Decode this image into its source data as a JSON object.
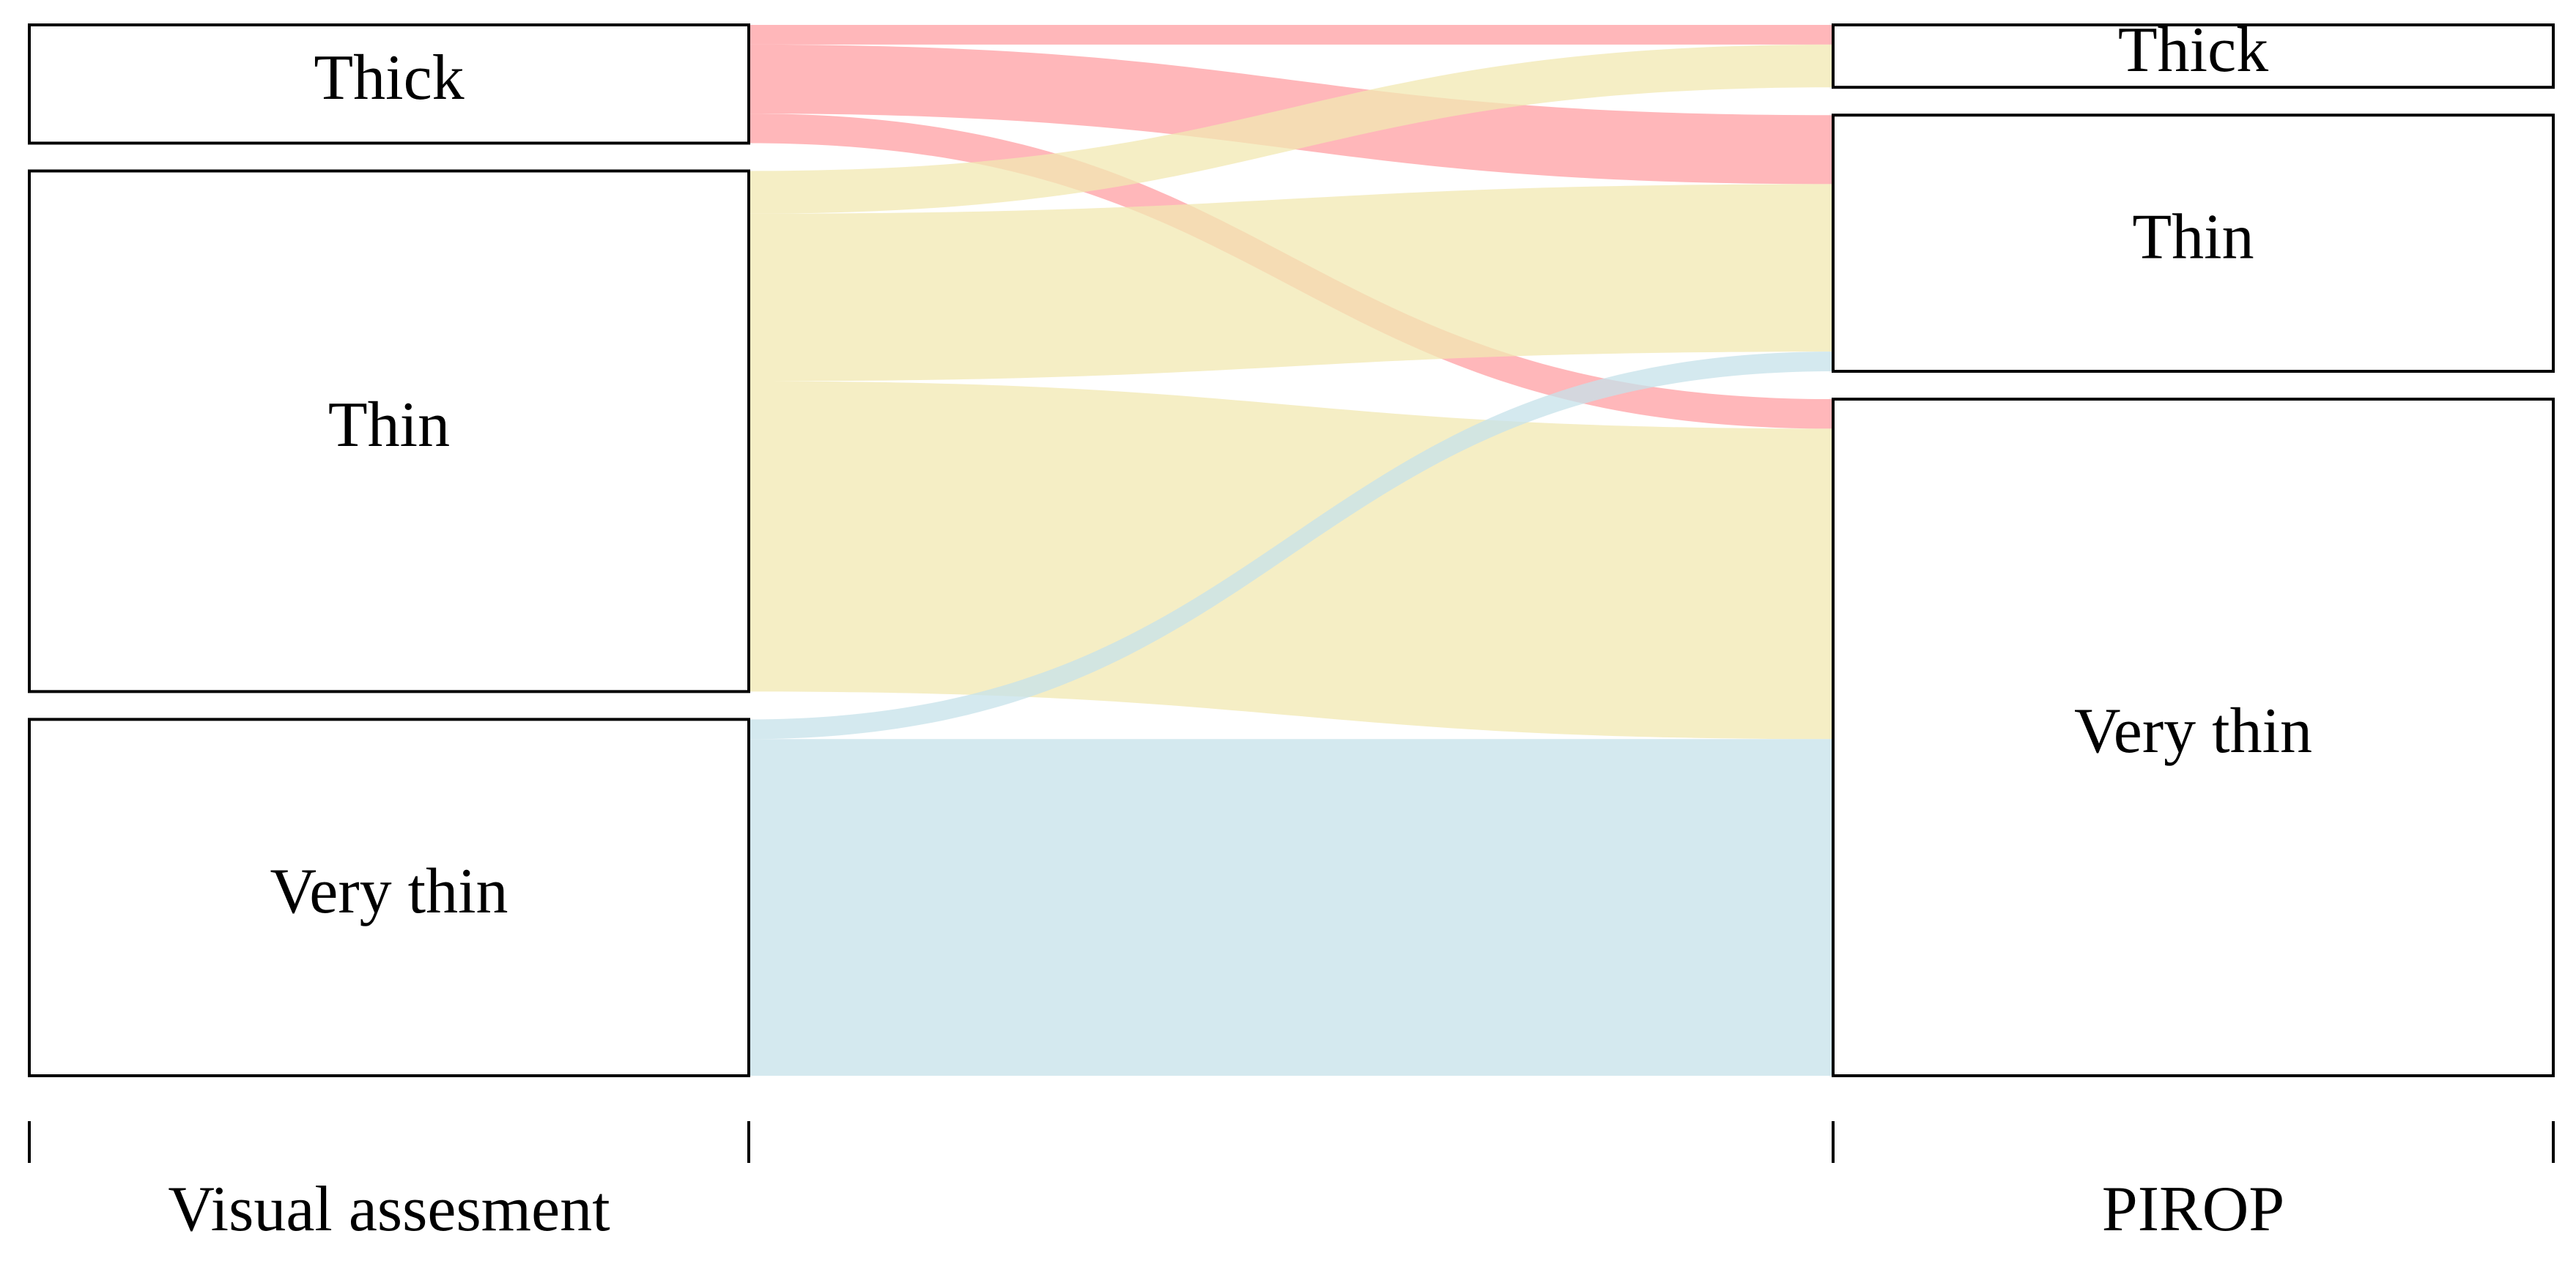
{
  "chart_data": {
    "type": "alluvial",
    "axes": [
      "Visual assesment",
      "PIROP"
    ],
    "strata": [
      "Thick",
      "Thin",
      "Very thin"
    ],
    "colors": [
      "#ff9fa3",
      "#f2e8b2",
      "#c6e2ea"
    ],
    "links": [
      {
        "source": "Thick",
        "target": "Thick",
        "value": 12
      },
      {
        "source": "Thick",
        "target": "Thin",
        "value": 42
      },
      {
        "source": "Thick",
        "target": "Very thin",
        "value": 18
      },
      {
        "source": "Thin",
        "target": "Thick",
        "value": 26
      },
      {
        "source": "Thin",
        "target": "Thin",
        "value": 102
      },
      {
        "source": "Thin",
        "target": "Very thin",
        "value": 189
      },
      {
        "source": "Very thin",
        "target": "Thin",
        "value": 12
      },
      {
        "source": "Very thin",
        "target": "Very thin",
        "value": 205
      }
    ]
  }
}
